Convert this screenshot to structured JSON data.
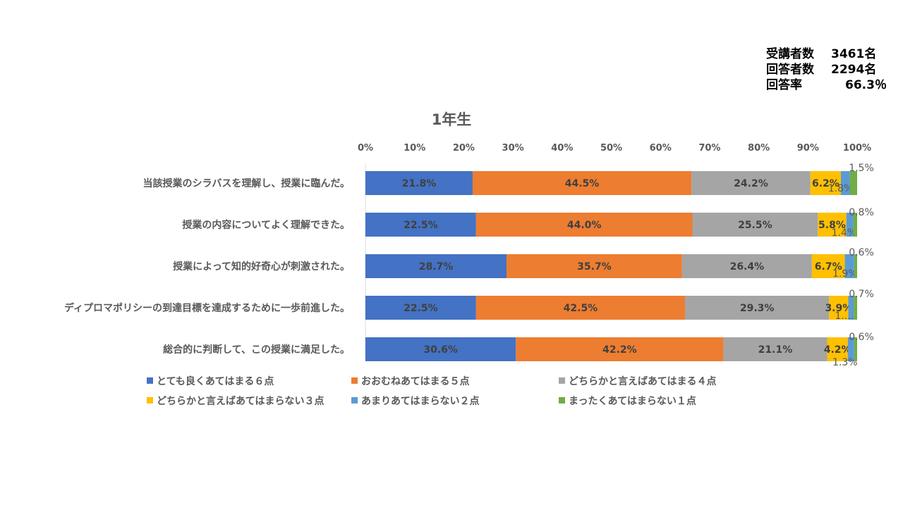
{
  "stats": [
    {
      "label": "受講者数",
      "value": "3461名"
    },
    {
      "label": "回答者数",
      "value": "2294名"
    },
    {
      "label": "回答率",
      "value": "66.3％"
    }
  ],
  "chart_data": {
    "type": "bar",
    "orientation": "horizontal",
    "stacked": "percent",
    "title": "1年生",
    "xlim": [
      0,
      100
    ],
    "x_ticks": [
      "0%",
      "10%",
      "20%",
      "30%",
      "40%",
      "50%",
      "60%",
      "70%",
      "80%",
      "90%",
      "100%"
    ],
    "x_axis_position": "top",
    "grid": false,
    "legend_position": "bottom",
    "categories": [
      "当該授業のシラバスを理解し、授業に臨んだ。",
      "授業の内容についてよく理解できた。",
      "授業によって知的好奇心が刺激された。",
      "ディプロマポリシーの到達目標を達成するために一歩前進した。",
      "総合的に判断して、この授業に満足した。"
    ],
    "series": [
      {
        "name": "とても良くあてはまる６点",
        "color": "#4472C4",
        "values": [
          21.8,
          22.5,
          28.7,
          22.5,
          30.6
        ]
      },
      {
        "name": "おおむねあてはまる５点",
        "color": "#ED7D31",
        "values": [
          44.5,
          44.0,
          35.7,
          42.5,
          42.2
        ]
      },
      {
        "name": "どちらかと言えばあてはまる４点",
        "color": "#A5A5A5",
        "values": [
          24.2,
          25.5,
          26.4,
          29.3,
          21.1
        ]
      },
      {
        "name": "どちらかと言えばあてはまらない３点",
        "color": "#FFC000",
        "values": [
          6.2,
          5.8,
          6.7,
          3.9,
          4.2
        ]
      },
      {
        "name": "あまりあてはまらない２点",
        "color": "#5B9BD5",
        "values": [
          1.8,
          1.4,
          1.9,
          1.1,
          1.3
        ]
      },
      {
        "name": "まったくあてはまらない１点",
        "color": "#70AD47",
        "values": [
          1.5,
          0.8,
          0.6,
          0.7,
          0.6
        ]
      }
    ],
    "data_labels": [
      [
        "21.8%",
        "44.5%",
        "24.2%",
        "6.2%",
        "1.8%",
        "1.5%"
      ],
      [
        "22.5%",
        "44.0%",
        "25.5%",
        "5.8%",
        "1.4%",
        "0.8%"
      ],
      [
        "28.7%",
        "35.7%",
        "26.4%",
        "6.7%",
        "1.9%",
        "0.6%"
      ],
      [
        "22.5%",
        "42.5%",
        "29.3%",
        "3.9%",
        "1.…",
        "0.7%"
      ],
      [
        "30.6%",
        "42.2%",
        "21.1%",
        "4.2%",
        "1.3%",
        "0.6%"
      ]
    ]
  }
}
